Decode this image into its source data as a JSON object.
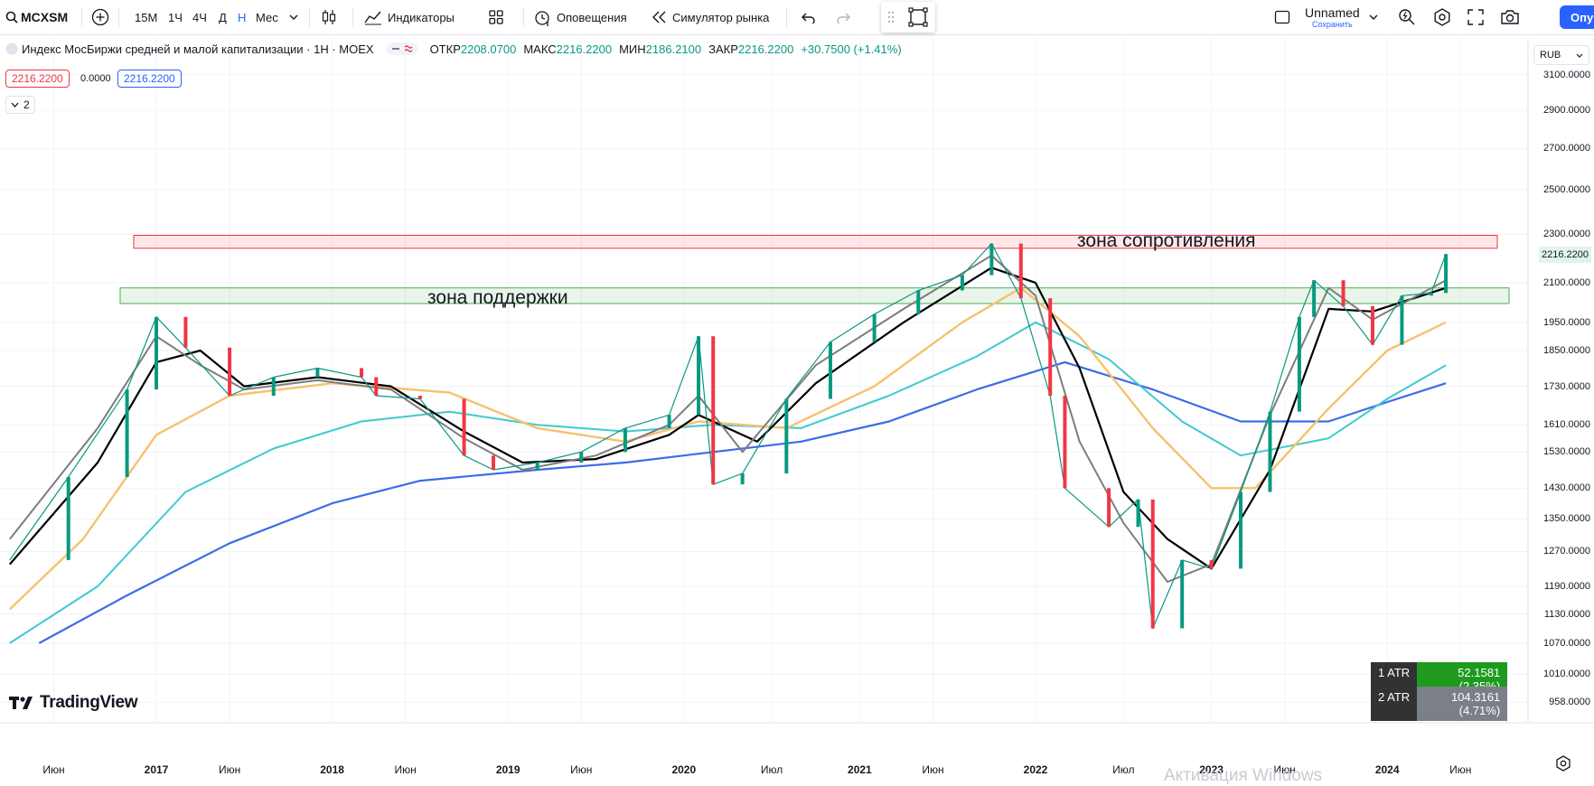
{
  "toolbar": {
    "symbol": "MCXSM",
    "timeframes": [
      "15М",
      "1Ч",
      "4Ч",
      "Д",
      "Н",
      "Мес"
    ],
    "active_timeframe": "Н",
    "indicators_label": "Индикаторы",
    "alerts_label": "Оповещения",
    "replay_label": "Симулятор рынка",
    "layout_name": "Unnamed",
    "save_label": "Сохранить",
    "publish_label": "Опублико"
  },
  "legend": {
    "title": "Индекс МосБиржи средней и малой капитализации · 1Н · MOEX",
    "open_label": "ОТКР",
    "open": "2208.0700",
    "high_label": "МАКС",
    "high": "2216.2200",
    "low_label": "МИН",
    "low": "2186.2100",
    "close_label": "ЗАКР",
    "close": "2216.2200",
    "change": "+30.7500 (+1.41%)",
    "bid": "2216.2200",
    "spread": "0.0000",
    "ask": "2216.2200",
    "indicators_count": "2"
  },
  "currency": "RUB",
  "price_tag": "2216.2200",
  "zones": {
    "resistance_label": "зона сопротивления",
    "support_label": "зона поддержки"
  },
  "atr": [
    {
      "label": "1 ATR",
      "value": "52.1581 (2.35%)",
      "color": "#1e9b1e"
    },
    {
      "label": "2 ATR",
      "value": "104.3161 (4.71%)",
      "color": "#7b7f87"
    }
  ],
  "brand": "TradingView",
  "watermark": "Активация Windows",
  "colors": {
    "up": "#089981",
    "down": "#f23645",
    "sma_fast": "#7d7d7d",
    "sma_mid": "#000000",
    "sma_50": "#f7c16e",
    "sma_100": "#3fc9cf",
    "sma_200": "#3d6be8"
  },
  "chart_data": {
    "type": "line",
    "price_axis": [
      "3100.0000",
      "2900.0000",
      "2700.0000",
      "2500.0000",
      "2300.0000",
      "2100.0000",
      "1950.0000",
      "1850.0000",
      "1730.0000",
      "1610.0000",
      "1530.0000",
      "1430.0000",
      "1350.0000",
      "1270.0000",
      "1190.0000",
      "1130.0000",
      "1070.0000",
      "1010.0000",
      "958.0000"
    ],
    "time_axis": [
      "Июн",
      "2017",
      "Июн",
      "2018",
      "Июн",
      "2019",
      "Июн",
      "2020",
      "Июл",
      "2021",
      "Июн",
      "2022",
      "Июл",
      "2023",
      "Июн",
      "2024",
      "Июн"
    ],
    "price_range": [
      958,
      3100
    ],
    "resistance_zone": [
      2240,
      2295
    ],
    "support_zone": [
      2020,
      2080
    ],
    "series": [
      {
        "key": "price",
        "points": [
          [
            "2016-03",
            1250
          ],
          [
            "2016-07",
            1460
          ],
          [
            "2016-11",
            1720
          ],
          [
            "2017-01",
            1970
          ],
          [
            "2017-03",
            1860
          ],
          [
            "2017-06",
            1700
          ],
          [
            "2017-09",
            1760
          ],
          [
            "2017-12",
            1790
          ],
          [
            "2018-03",
            1760
          ],
          [
            "2018-04",
            1700
          ],
          [
            "2018-07",
            1690
          ],
          [
            "2018-10",
            1520
          ],
          [
            "2018-12",
            1480
          ],
          [
            "2019-03",
            1500
          ],
          [
            "2019-06",
            1530
          ],
          [
            "2019-09",
            1600
          ],
          [
            "2019-12",
            1640
          ],
          [
            "2020-02",
            1900
          ],
          [
            "2020-03",
            1440
          ],
          [
            "2020-05",
            1470
          ],
          [
            "2020-08",
            1690
          ],
          [
            "2020-11",
            1880
          ],
          [
            "2021-02",
            1980
          ],
          [
            "2021-05",
            2070
          ],
          [
            "2021-08",
            2130
          ],
          [
            "2021-10",
            2260
          ],
          [
            "2021-12",
            2040
          ],
          [
            "2022-02",
            1700
          ],
          [
            "2022-03",
            1430
          ],
          [
            "2022-06",
            1330
          ],
          [
            "2022-08",
            1400
          ],
          [
            "2022-09",
            1100
          ],
          [
            "2022-11",
            1250
          ],
          [
            "2023-01",
            1230
          ],
          [
            "2023-03",
            1420
          ],
          [
            "2023-05",
            1650
          ],
          [
            "2023-07",
            1970
          ],
          [
            "2023-08",
            2110
          ],
          [
            "2023-10",
            2010
          ],
          [
            "2023-12",
            1870
          ],
          [
            "2024-02",
            2050
          ],
          [
            "2024-04",
            2060
          ],
          [
            "2024-05",
            2216
          ]
        ]
      },
      {
        "key": "sma_fast",
        "points": [
          [
            "2016-03",
            1300
          ],
          [
            "2016-09",
            1600
          ],
          [
            "2017-01",
            1900
          ],
          [
            "2017-04",
            1800
          ],
          [
            "2017-07",
            1720
          ],
          [
            "2017-12",
            1750
          ],
          [
            "2018-05",
            1720
          ],
          [
            "2018-10",
            1570
          ],
          [
            "2019-02",
            1480
          ],
          [
            "2019-07",
            1520
          ],
          [
            "2019-12",
            1610
          ],
          [
            "2020-02",
            1700
          ],
          [
            "2020-05",
            1530
          ],
          [
            "2020-10",
            1800
          ],
          [
            "2021-04",
            2000
          ],
          [
            "2021-10",
            2210
          ],
          [
            "2022-01",
            2050
          ],
          [
            "2022-04",
            1560
          ],
          [
            "2022-07",
            1340
          ],
          [
            "2022-10",
            1200
          ],
          [
            "2023-01",
            1240
          ],
          [
            "2023-05",
            1640
          ],
          [
            "2023-09",
            2080
          ],
          [
            "2023-12",
            1960
          ],
          [
            "2024-05",
            2110
          ]
        ]
      },
      {
        "key": "sma_mid",
        "points": [
          [
            "2016-03",
            1240
          ],
          [
            "2016-09",
            1500
          ],
          [
            "2017-01",
            1810
          ],
          [
            "2017-04",
            1850
          ],
          [
            "2017-07",
            1730
          ],
          [
            "2017-12",
            1760
          ],
          [
            "2018-05",
            1730
          ],
          [
            "2018-10",
            1590
          ],
          [
            "2019-02",
            1500
          ],
          [
            "2019-07",
            1510
          ],
          [
            "2019-12",
            1580
          ],
          [
            "2020-02",
            1640
          ],
          [
            "2020-06",
            1560
          ],
          [
            "2020-10",
            1740
          ],
          [
            "2021-04",
            1950
          ],
          [
            "2021-10",
            2160
          ],
          [
            "2022-01",
            2100
          ],
          [
            "2022-04",
            1790
          ],
          [
            "2022-07",
            1420
          ],
          [
            "2022-10",
            1300
          ],
          [
            "2023-01",
            1230
          ],
          [
            "2023-05",
            1480
          ],
          [
            "2023-09",
            2000
          ],
          [
            "2023-12",
            1990
          ],
          [
            "2024-05",
            2080
          ]
        ]
      },
      {
        "key": "sma_50",
        "points": [
          [
            "2016-03",
            1140
          ],
          [
            "2016-08",
            1300
          ],
          [
            "2017-01",
            1580
          ],
          [
            "2017-06",
            1700
          ],
          [
            "2018-01",
            1740
          ],
          [
            "2018-09",
            1710
          ],
          [
            "2019-03",
            1600
          ],
          [
            "2019-09",
            1560
          ],
          [
            "2020-02",
            1620
          ],
          [
            "2020-08",
            1600
          ],
          [
            "2021-02",
            1730
          ],
          [
            "2021-08",
            1950
          ],
          [
            "2021-12",
            2080
          ],
          [
            "2022-04",
            1900
          ],
          [
            "2022-09",
            1600
          ],
          [
            "2023-01",
            1430
          ],
          [
            "2023-04",
            1430
          ],
          [
            "2023-09",
            1660
          ],
          [
            "2024-01",
            1850
          ],
          [
            "2024-05",
            1950
          ]
        ]
      },
      {
        "key": "sma_100",
        "points": [
          [
            "2016-03",
            1070
          ],
          [
            "2016-09",
            1190
          ],
          [
            "2017-03",
            1420
          ],
          [
            "2017-09",
            1540
          ],
          [
            "2018-03",
            1620
          ],
          [
            "2018-09",
            1650
          ],
          [
            "2019-03",
            1610
          ],
          [
            "2019-09",
            1590
          ],
          [
            "2020-03",
            1610
          ],
          [
            "2020-09",
            1600
          ],
          [
            "2021-03",
            1700
          ],
          [
            "2021-09",
            1830
          ],
          [
            "2022-01",
            1950
          ],
          [
            "2022-06",
            1820
          ],
          [
            "2022-11",
            1620
          ],
          [
            "2023-03",
            1520
          ],
          [
            "2023-09",
            1570
          ],
          [
            "2024-01",
            1690
          ],
          [
            "2024-05",
            1800
          ]
        ]
      },
      {
        "key": "sma_200",
        "points": [
          [
            "2016-05",
            1070
          ],
          [
            "2016-11",
            1170
          ],
          [
            "2017-06",
            1290
          ],
          [
            "2018-01",
            1390
          ],
          [
            "2018-07",
            1450
          ],
          [
            "2019-03",
            1480
          ],
          [
            "2019-09",
            1500
          ],
          [
            "2020-03",
            1530
          ],
          [
            "2020-09",
            1560
          ],
          [
            "2021-03",
            1620
          ],
          [
            "2021-09",
            1720
          ],
          [
            "2022-03",
            1810
          ],
          [
            "2022-09",
            1720
          ],
          [
            "2023-03",
            1620
          ],
          [
            "2023-09",
            1620
          ],
          [
            "2024-01",
            1680
          ],
          [
            "2024-05",
            1740
          ]
        ]
      }
    ]
  }
}
